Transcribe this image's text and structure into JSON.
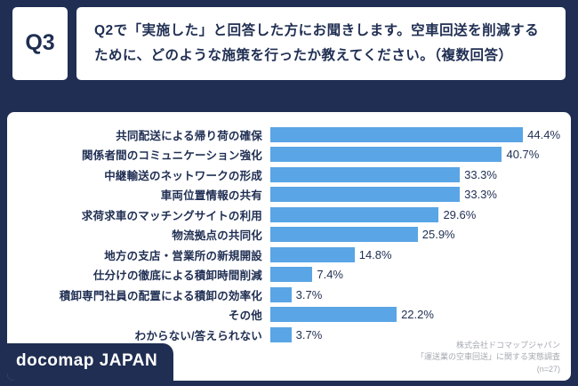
{
  "colors": {
    "background": "#1f2e52",
    "bar": "#5aa5e5",
    "text": "#1f2e52",
    "citation": "#a5a9b0"
  },
  "header": {
    "q_label": "Q3",
    "question": "Q2で「実施した」と回答した方にお聞きします。空車回送を削減するために、どのような施策を行ったか教えてください。（複数回答）"
  },
  "chart_data": {
    "type": "bar",
    "orientation": "horizontal",
    "title": "",
    "xlabel": "",
    "ylabel": "",
    "xlim": [
      0,
      50
    ],
    "grid": false,
    "legend": false,
    "categories": [
      "共同配送による帰り荷の確保",
      "関係者間のコミュニケーション強化",
      "中継輸送のネットワークの形成",
      "車両位置情報の共有",
      "求荷求車のマッチングサイトの利用",
      "物流拠点の共同化",
      "地方の支店・営業所の新規開設",
      "仕分けの徹底による積卸時間削減",
      "積卸専門社員の配置による積卸の効率化",
      "その他",
      "わからない/答えられない"
    ],
    "values": [
      44.4,
      40.7,
      33.3,
      33.3,
      29.6,
      25.9,
      14.8,
      7.4,
      3.7,
      22.2,
      3.7
    ],
    "value_labels": [
      "44.4%",
      "40.7%",
      "33.3%",
      "33.3%",
      "29.6%",
      "25.9%",
      "14.8%",
      "7.4%",
      "3.7%",
      "22.2%",
      "3.7%"
    ]
  },
  "footer": {
    "logo": "docomap JAPAN",
    "citation_lines": [
      "株式会社ドコマップジャパン",
      "「運送業の空車回送」に関する実態調査",
      "(n=27)"
    ]
  }
}
